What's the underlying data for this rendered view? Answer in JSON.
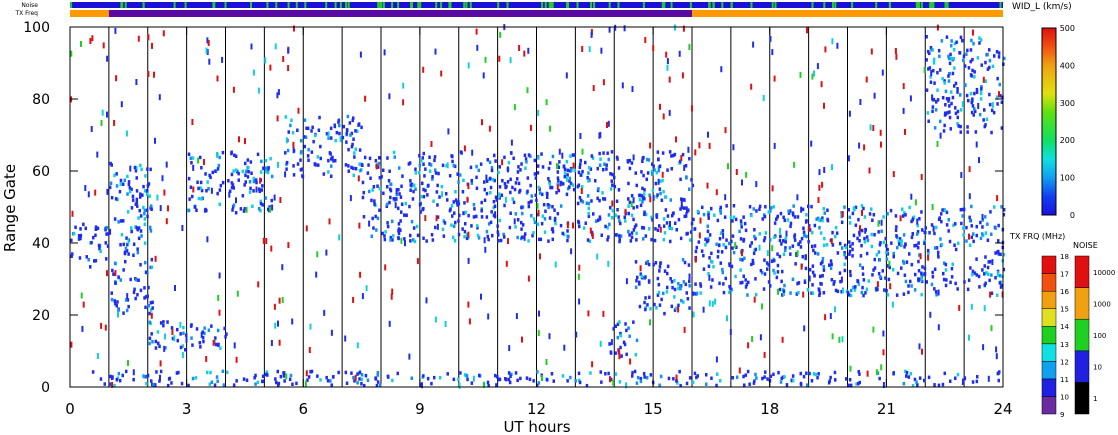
{
  "header": {
    "noise_label": "Noise",
    "freq_label": "TX Freq"
  },
  "axes": {
    "xlabel": "UT hours",
    "ylabel": "Range Gate",
    "xticks": [
      "0",
      "3",
      "6",
      "9",
      "12",
      "15",
      "18",
      "21",
      "24"
    ],
    "yticks": [
      "0",
      "20",
      "40",
      "60",
      "80",
      "100"
    ]
  },
  "colorbars": {
    "width": {
      "title": "WID_L (km/s)",
      "ticks": [
        "0",
        "100",
        "200",
        "300",
        "400",
        "500"
      ],
      "range": [
        0,
        500
      ]
    },
    "freq": {
      "title": "TX FRQ (MHz)",
      "ticks": [
        "9",
        "10",
        "11",
        "12",
        "13",
        "14",
        "15",
        "16",
        "17",
        "18"
      ]
    },
    "noise": {
      "title": "NOISE",
      "ticks": [
        "1",
        "10",
        "100",
        "1000",
        "10000"
      ]
    }
  },
  "colors": {
    "noise_band": "#1c10d8",
    "noise_flecks": "#22cc22",
    "freq_band_a": "#ff9900",
    "freq_band_b": "#5a0aa0",
    "scatter_blue": "#1e2cf0",
    "scatter_red": "#e01010",
    "scatter_cyan": "#10d0e0",
    "scatter_lightblue": "#1090f0",
    "scatter_green": "#20d020"
  },
  "chart_data": {
    "type": "scatter",
    "title": "",
    "xlabel": "UT hours",
    "ylabel": "Range Gate",
    "xlim": [
      0,
      24
    ],
    "ylim": [
      0,
      100
    ],
    "grid": "vertical lines every hour",
    "colorbar": "WID_L (km/s)",
    "color_range": [
      0,
      500
    ],
    "tx_freq_timeline": [
      {
        "x_start": 0,
        "x_end": 1,
        "freq_band": "orange"
      },
      {
        "x_start": 1,
        "x_end": 16,
        "freq_band": "purple"
      },
      {
        "x_start": 16,
        "x_end": 24,
        "freq_band": "orange"
      }
    ],
    "series": [
      {
        "x_start": 0.0,
        "x_end": 1.0,
        "y_min": 33,
        "y_max": 45,
        "dominant": "blue"
      },
      {
        "x_start": 1.0,
        "x_end": 2.1,
        "y_min": 20,
        "y_max": 62,
        "dominant": "blue"
      },
      {
        "x_start": 2.0,
        "x_end": 4.0,
        "y_min": 10,
        "y_max": 18,
        "dominant": "blue"
      },
      {
        "x_start": 3.0,
        "x_end": 5.2,
        "y_min": 48,
        "y_max": 65,
        "dominant": "blue"
      },
      {
        "x_start": 5.5,
        "x_end": 7.5,
        "y_min": 58,
        "y_max": 75,
        "dominant": "blue"
      },
      {
        "x_start": 7.5,
        "x_end": 16.0,
        "y_min": 40,
        "y_max": 65,
        "dominant": "blue"
      },
      {
        "x_start": 13.8,
        "x_end": 14.6,
        "y_min": 8,
        "y_max": 18,
        "dominant": "blue"
      },
      {
        "x_start": 14.5,
        "x_end": 16.0,
        "y_min": 20,
        "y_max": 35,
        "dominant": "blue"
      },
      {
        "x_start": 16.0,
        "x_end": 24.0,
        "y_min": 25,
        "y_max": 50,
        "dominant": "blue"
      },
      {
        "x_start": 22.0,
        "x_end": 24.0,
        "y_min": 70,
        "y_max": 97,
        "dominant": "blue"
      },
      {
        "x_start": 0.5,
        "x_end": 24.0,
        "y_min": 0,
        "y_max": 4,
        "dominant": "blue"
      }
    ]
  }
}
